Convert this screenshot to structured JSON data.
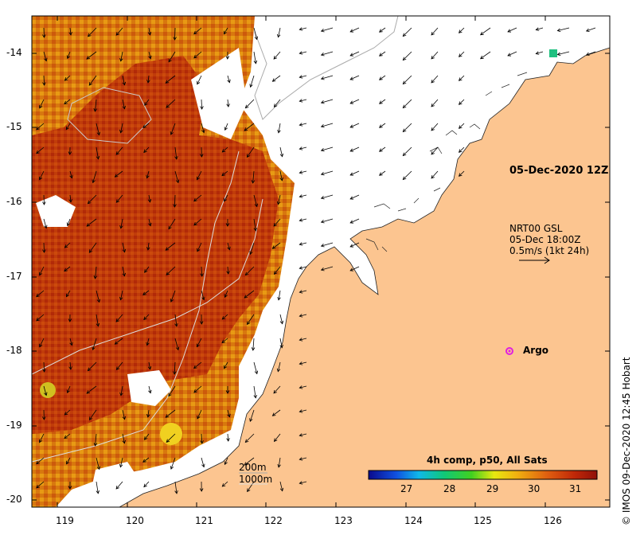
{
  "map": {
    "lon_ticks": [
      "119",
      "120",
      "121",
      "122",
      "123",
      "124",
      "125",
      "126"
    ],
    "lat_ticks": [
      "-14",
      "-15",
      "-16",
      "-17",
      "-18",
      "-19",
      "-20"
    ],
    "date_label": "05-Dec-2020 12Z",
    "currents": {
      "source": "NRT00 GSL",
      "time": "05-Dec 18:00Z",
      "scale": "0.5m/s (1kt 24h)"
    },
    "argo_label": "Argo",
    "isobaths": {
      "deep": "200m",
      "deeper": "1000m"
    },
    "credit": "© IMOS 09-Dec-2020 12:45 Hobart"
  },
  "colorbar": {
    "title": "4h comp, p50, All Sats",
    "tick_labels": [
      "27",
      "28",
      "29",
      "30",
      "31"
    ]
  },
  "colors": {
    "land": "#fcc590",
    "sst_warm": "#b02a08",
    "sst_mid": "#d45f0c",
    "sst_cool": "#e89a14",
    "argo": "#e020e0"
  }
}
